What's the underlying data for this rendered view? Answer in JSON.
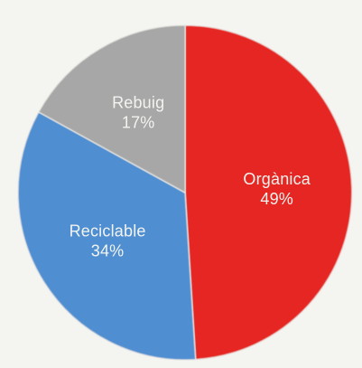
{
  "chart_data": {
    "type": "pie",
    "slices": [
      {
        "label": "Orgànica",
        "value": 49,
        "display": "49%",
        "color": "#e52521"
      },
      {
        "label": "Reciclable",
        "value": 34,
        "display": "34%",
        "color": "#4f8fd1"
      },
      {
        "label": "Rebuig",
        "value": 17,
        "display": "17%",
        "color": "#a7a7a7"
      }
    ],
    "start_angle_deg": 0,
    "direction": "clockwise",
    "title": "",
    "legend": "none"
  }
}
